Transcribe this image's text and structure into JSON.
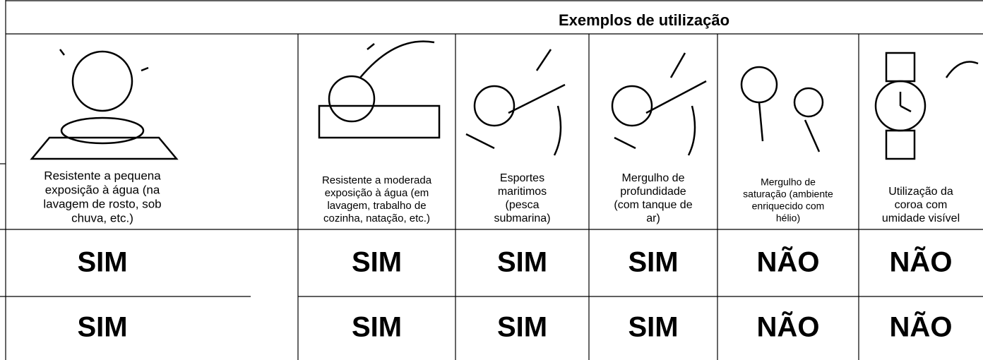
{
  "header": {
    "title": "Exemplos de utilização"
  },
  "columns": [
    {
      "description": [
        "Resistente a pequena",
        "exposição à água (na",
        "lavagem de rosto, sob",
        "chuva, etc.)"
      ]
    },
    {
      "description": [
        "Resistente a moderada",
        "exposição à água (em",
        "lavagem, trabalho de",
        "cozinha, natação, etc.)"
      ]
    },
    {
      "description": [
        "Esportes",
        "maritimos",
        "(pesca",
        "submarina)"
      ]
    },
    {
      "description": [
        "Mergulho de",
        "profundidade",
        "(com tanque de",
        "ar)"
      ]
    },
    {
      "description": [
        "Mergulho de",
        "saturação (ambiente",
        "enriquecido com",
        "hélio)"
      ]
    },
    {
      "description": [
        "Utilização da",
        "coroa com",
        "umidade visível"
      ]
    }
  ],
  "rows": [
    [
      "SIM",
      "SIM",
      "SIM",
      "SIM",
      "NÃO",
      "NÃO"
    ],
    [
      "SIM",
      "SIM",
      "SIM",
      "SIM",
      "NÃO",
      "NÃO"
    ]
  ]
}
